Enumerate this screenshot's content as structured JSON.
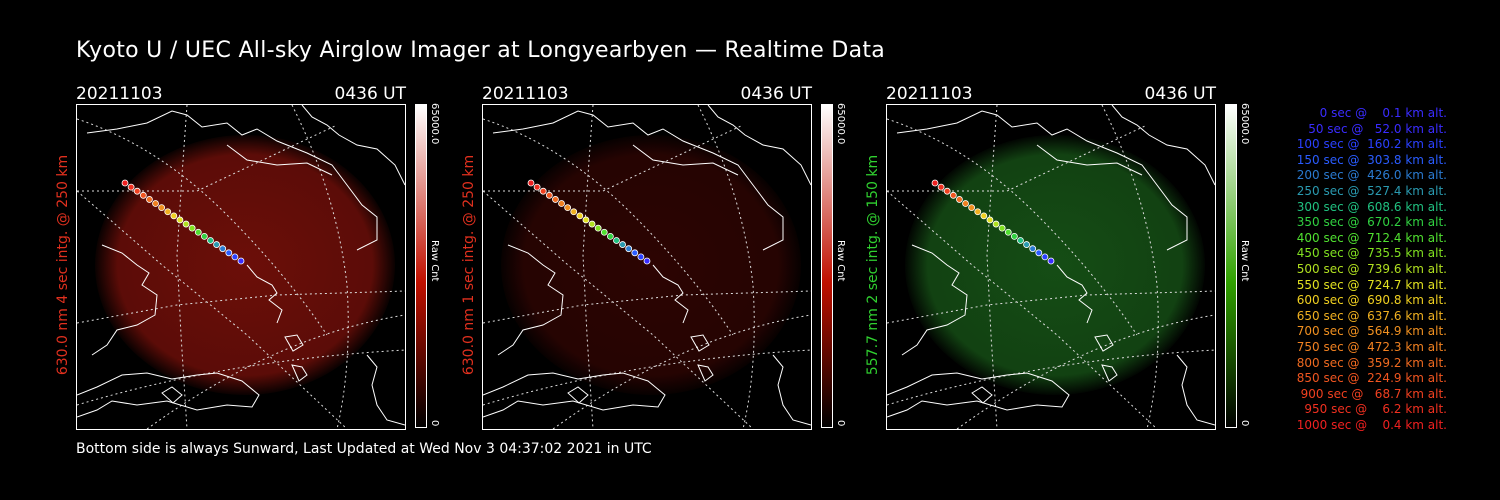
{
  "title": "Kyoto U / UEC All-sky Airglow Imager at Longyearbyen — Realtime Data",
  "footer": "Bottom side is always Sunward, Last Updated at Wed Nov  3 04:37:02 2021 in UTC",
  "panels": [
    {
      "date": "20211103",
      "time": "0436 UT",
      "label": "630.0 nm 4 sec intg. @ 250 km",
      "label_color": "#e0301e",
      "glow": "#c41a10",
      "glow_opacity": 0.55,
      "cbar_max": "65000.0",
      "cbar_unit": "Raw Cnt",
      "cbar_min": "0",
      "cbar_color": "#c01000"
    },
    {
      "date": "20211103",
      "time": "0436 UT",
      "label": "630.0 nm 1 sec intg. @ 250 km",
      "label_color": "#e0301e",
      "glow": "#8a0e08",
      "glow_opacity": 0.32,
      "cbar_max": "65000.0",
      "cbar_unit": "Raw Cnt",
      "cbar_min": "0",
      "cbar_color": "#c01000"
    },
    {
      "date": "20211103",
      "time": "0436 UT",
      "label": "557.7 nm 2 sec intg. @ 150 km",
      "label_color": "#30d030",
      "glow": "#1e6e1e",
      "glow_opacity": 0.7,
      "cbar_max": "65000.0",
      "cbar_unit": "Raw Cnt",
      "cbar_min": "0",
      "cbar_color": "#30a000"
    }
  ],
  "legend": [
    {
      "text": "   0 sec @    0.1 km alt.",
      "color": "#3a2cff"
    },
    {
      "text": "  50 sec @   52.0 km alt.",
      "color": "#3a2cff"
    },
    {
      "text": " 100 sec @  160.2 km alt.",
      "color": "#2a40ff"
    },
    {
      "text": " 150 sec @  303.8 km alt.",
      "color": "#2a5cff"
    },
    {
      "text": " 200 sec @  426.0 km alt.",
      "color": "#2a7ad0"
    },
    {
      "text": " 250 sec @  527.4 km alt.",
      "color": "#2a9ab0"
    },
    {
      "text": " 300 sec @  608.6 km alt.",
      "color": "#20c080"
    },
    {
      "text": " 350 sec @  670.2 km alt.",
      "color": "#30d040"
    },
    {
      "text": " 400 sec @  712.4 km alt.",
      "color": "#50e030"
    },
    {
      "text": " 450 sec @  735.5 km alt.",
      "color": "#80e020"
    },
    {
      "text": " 500 sec @  739.6 km alt.",
      "color": "#b0e020"
    },
    {
      "text": " 550 sec @  724.7 km alt.",
      "color": "#e0e020"
    },
    {
      "text": " 600 sec @  690.8 km alt.",
      "color": "#f0d020"
    },
    {
      "text": " 650 sec @  637.6 km alt.",
      "color": "#f0b020"
    },
    {
      "text": " 700 sec @  564.9 km alt.",
      "color": "#f09020"
    },
    {
      "text": " 750 sec @  472.3 km alt.",
      "color": "#f08020"
    },
    {
      "text": " 800 sec @  359.2 km alt.",
      "color": "#f06a20"
    },
    {
      "text": " 850 sec @  224.9 km alt.",
      "color": "#f05520"
    },
    {
      "text": " 900 sec @   68.7 km alt.",
      "color": "#f04020"
    },
    {
      "text": " 950 sec @    6.2 km alt.",
      "color": "#f03020"
    },
    {
      "text": "1000 sec @    0.4 km alt.",
      "color": "#f02020"
    }
  ]
}
